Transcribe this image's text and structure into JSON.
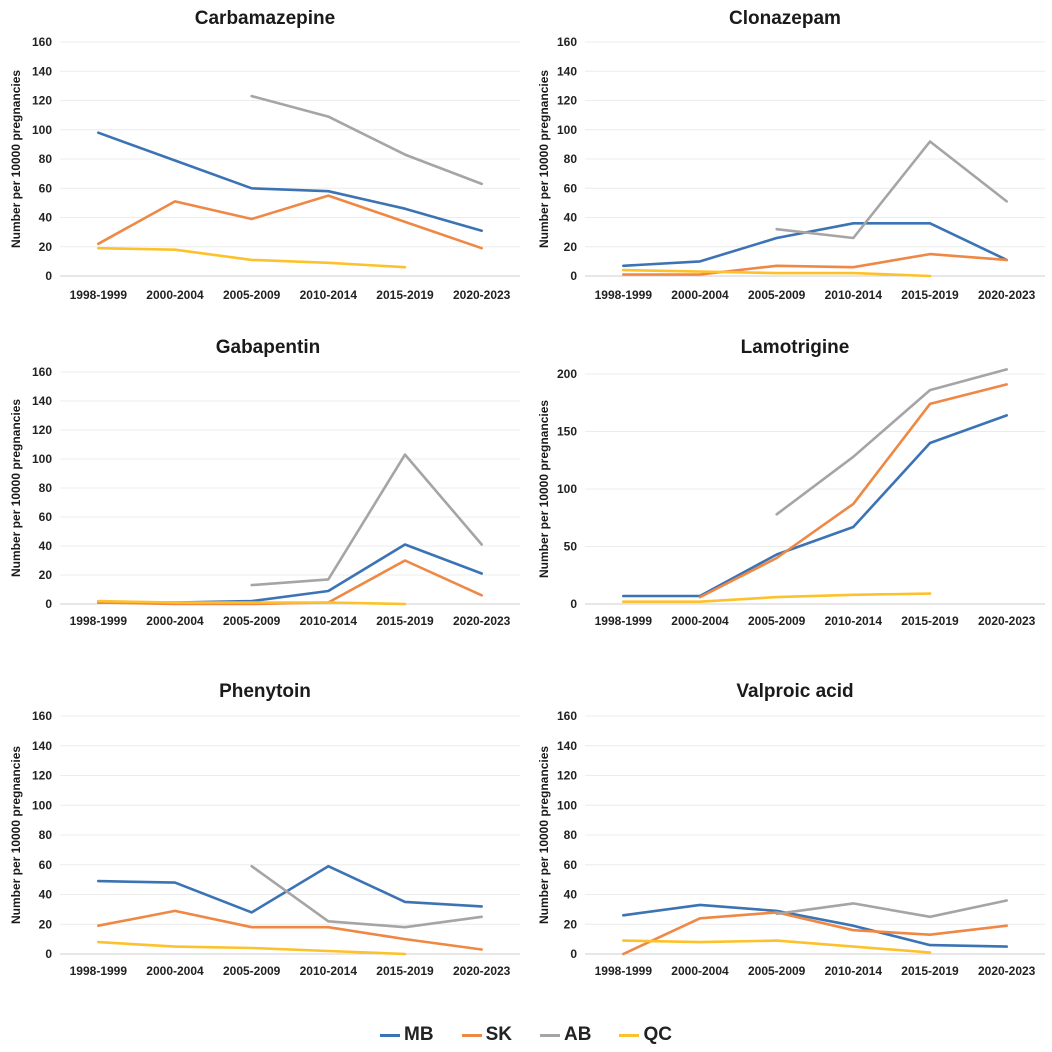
{
  "colors": {
    "MB": "#3c73b4",
    "SK": "#ee8844",
    "AB": "#a5a5a5",
    "QC": "#fdc12c"
  },
  "legend": [
    {
      "key": "MB",
      "label": "MB"
    },
    {
      "key": "SK",
      "label": "SK"
    },
    {
      "key": "AB",
      "label": "AB"
    },
    {
      "key": "QC",
      "label": "QC"
    }
  ],
  "chart_data": [
    {
      "type": "line",
      "title": "Carbamazepine",
      "ylabel": "Number per 10000 pregnancies",
      "categories": [
        "1998-1999",
        "2000-2004",
        "2005-2009",
        "2010-2014",
        "2015-2019",
        "2020-2023"
      ],
      "ylim": [
        0,
        160
      ],
      "yticks": [
        0,
        20,
        40,
        60,
        80,
        100,
        120,
        140,
        160
      ],
      "series": [
        {
          "name": "MB",
          "values": [
            98,
            79,
            60,
            58,
            46,
            31
          ]
        },
        {
          "name": "SK",
          "values": [
            22,
            51,
            39,
            55,
            37,
            19
          ]
        },
        {
          "name": "AB",
          "values": [
            null,
            null,
            123,
            109,
            83,
            63
          ]
        },
        {
          "name": "QC",
          "values": [
            19,
            18,
            11,
            9,
            6,
            null
          ]
        }
      ]
    },
    {
      "type": "line",
      "title": "Clonazepam",
      "ylabel": "Number per 10000 pregnancies",
      "categories": [
        "1998-1999",
        "2000-2004",
        "2005-2009",
        "2010-2014",
        "2015-2019",
        "2020-2023"
      ],
      "ylim": [
        0,
        160
      ],
      "yticks": [
        0,
        20,
        40,
        60,
        80,
        100,
        120,
        140,
        160
      ],
      "series": [
        {
          "name": "MB",
          "values": [
            7,
            10,
            26,
            36,
            36,
            11
          ]
        },
        {
          "name": "SK",
          "values": [
            1,
            1,
            7,
            6,
            15,
            11
          ]
        },
        {
          "name": "AB",
          "values": [
            null,
            null,
            32,
            26,
            92,
            51
          ]
        },
        {
          "name": "QC",
          "values": [
            4,
            3,
            2,
            2,
            0,
            null
          ]
        }
      ]
    },
    {
      "type": "line",
      "title": "Gabapentin",
      "ylabel": "Number per 10000 pregnancies",
      "categories": [
        "1998-1999",
        "2000-2004",
        "2005-2009",
        "2010-2014",
        "2015-2019",
        "2020-2023"
      ],
      "ylim": [
        0,
        160
      ],
      "yticks": [
        0,
        20,
        40,
        60,
        80,
        100,
        120,
        140,
        160
      ],
      "series": [
        {
          "name": "MB",
          "values": [
            1,
            1,
            2,
            9,
            41,
            21
          ]
        },
        {
          "name": "SK",
          "values": [
            1,
            0,
            0,
            1,
            30,
            6
          ]
        },
        {
          "name": "AB",
          "values": [
            null,
            null,
            13,
            17,
            103,
            41
          ]
        },
        {
          "name": "QC",
          "values": [
            2,
            1,
            1,
            1,
            0,
            null
          ]
        }
      ]
    },
    {
      "type": "line",
      "title": "Lamotrigine",
      "ylabel": "Number per 10000 pregnancies",
      "categories": [
        "1998-1999",
        "2000-2004",
        "2005-2009",
        "2010-2014",
        "2015-2019",
        "2020-2023"
      ],
      "ylim": [
        0,
        200
      ],
      "yticks": [
        0,
        50,
        100,
        150,
        200
      ],
      "series": [
        {
          "name": "MB",
          "values": [
            7,
            7,
            43,
            67,
            140,
            164
          ]
        },
        {
          "name": "SK",
          "values": [
            null,
            6,
            40,
            87,
            174,
            191
          ]
        },
        {
          "name": "AB",
          "values": [
            null,
            null,
            78,
            128,
            186,
            204
          ]
        },
        {
          "name": "QC",
          "values": [
            2,
            2,
            6,
            8,
            9,
            null
          ]
        }
      ]
    },
    {
      "type": "line",
      "title": "Phenytoin",
      "ylabel": "Number per 10000 pregnancies",
      "categories": [
        "1998-1999",
        "2000-2004",
        "2005-2009",
        "2010-2014",
        "2015-2019",
        "2020-2023"
      ],
      "ylim": [
        0,
        160
      ],
      "yticks": [
        0,
        20,
        40,
        60,
        80,
        100,
        120,
        140,
        160
      ],
      "series": [
        {
          "name": "MB",
          "values": [
            49,
            48,
            28,
            59,
            35,
            32
          ]
        },
        {
          "name": "SK",
          "values": [
            19,
            29,
            18,
            18,
            10,
            3
          ]
        },
        {
          "name": "AB",
          "values": [
            null,
            null,
            59,
            22,
            18,
            25
          ]
        },
        {
          "name": "QC",
          "values": [
            8,
            5,
            4,
            2,
            0,
            null
          ]
        }
      ]
    },
    {
      "type": "line",
      "title": "Valproic acid",
      "ylabel": "Number per 10000 pregnancies",
      "categories": [
        "1998-1999",
        "2000-2004",
        "2005-2009",
        "2010-2014",
        "2015-2019",
        "2020-2023"
      ],
      "ylim": [
        0,
        160
      ],
      "yticks": [
        0,
        20,
        40,
        60,
        80,
        100,
        120,
        140,
        160
      ],
      "series": [
        {
          "name": "MB",
          "values": [
            26,
            33,
            29,
            19,
            6,
            5
          ]
        },
        {
          "name": "SK",
          "values": [
            0,
            24,
            28,
            16,
            13,
            19
          ]
        },
        {
          "name": "AB",
          "values": [
            null,
            null,
            27,
            34,
            25,
            36
          ]
        },
        {
          "name": "QC",
          "values": [
            9,
            8,
            9,
            5,
            1,
            null
          ]
        }
      ]
    }
  ]
}
